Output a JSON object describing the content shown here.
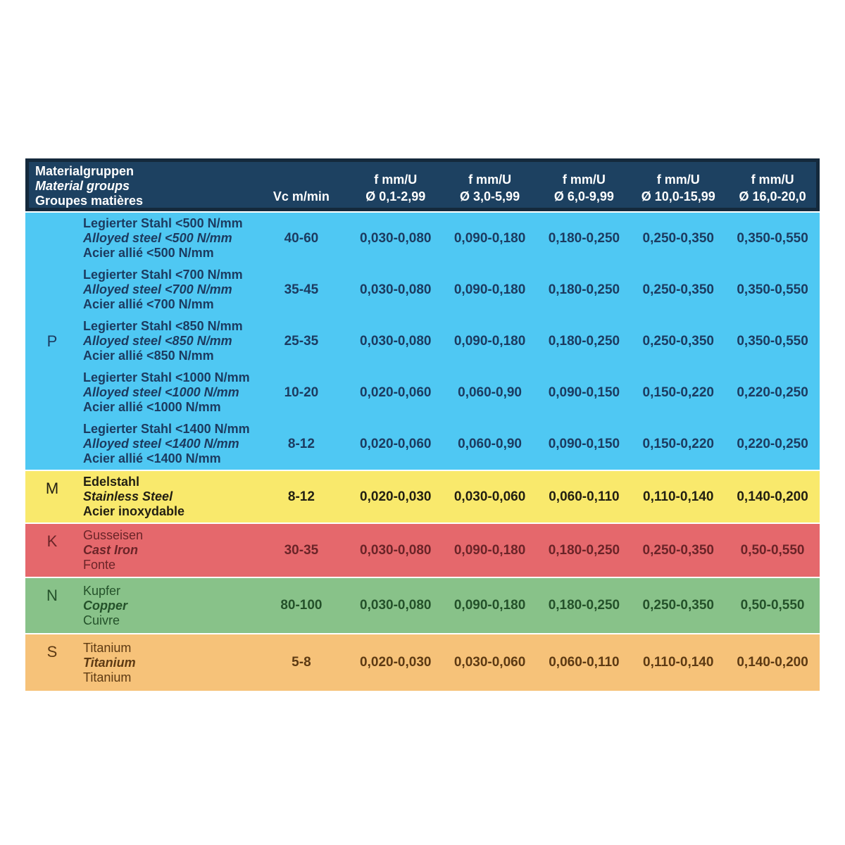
{
  "colors": {
    "header-bg": "#1d4161",
    "header-border": "#14293c",
    "header-text": "#ffffff",
    "p-bg": "#4fc8f3",
    "p-text": "#1c3b60",
    "m-bg": "#f9e96c",
    "m-text": "#221f12",
    "k-bg": "#e5686c",
    "k-text": "#6a2428",
    "n-bg": "#88c289",
    "n-text": "#24512a",
    "s-bg": "#f6c279",
    "s-text": "#5d3a13"
  },
  "table": {
    "header": {
      "title_lines": [
        "Materialgruppen",
        "Material groups",
        "Groupes matières"
      ],
      "col_vc": "Vc m/min",
      "f_label": "f mm/U",
      "diameters": [
        "Ø 0,1-2,99",
        "Ø 3,0-5,99",
        "Ø 6,0-9,99",
        "Ø 10,0-15,99",
        "Ø 16,0-20,0"
      ]
    },
    "sections": [
      {
        "letter": "P",
        "rows": [
          {
            "lines": [
              "Legierter Stahl <500 N/mm",
              "Alloyed steel <500 N/mm",
              "Acier allié <500 N/mm"
            ],
            "vc": "40-60",
            "values": [
              "0,030-0,080",
              "0,090-0,180",
              "0,180-0,250",
              "0,250-0,350",
              "0,350-0,550"
            ]
          },
          {
            "lines": [
              "Legierter Stahl <700 N/mm",
              "Alloyed steel <700 N/mm",
              "Acier allié <700 N/mm"
            ],
            "vc": "35-45",
            "values": [
              "0,030-0,080",
              "0,090-0,180",
              "0,180-0,250",
              "0,250-0,350",
              "0,350-0,550"
            ]
          },
          {
            "lines": [
              "Legierter Stahl <850 N/mm",
              "Alloyed steel <850 N/mm",
              "Acier allié <850 N/mm"
            ],
            "vc": "25-35",
            "values": [
              "0,030-0,080",
              "0,090-0,180",
              "0,180-0,250",
              "0,250-0,350",
              "0,350-0,550"
            ]
          },
          {
            "lines": [
              "Legierter Stahl <1000 N/mm",
              "Alloyed steel <1000 N/mm",
              "Acier allié <1000 N/mm"
            ],
            "vc": "10-20",
            "values": [
              "0,020-0,060",
              "0,060-0,90",
              "0,090-0,150",
              "0,150-0,220",
              "0,220-0,250"
            ]
          },
          {
            "lines": [
              "Legierter Stahl <1400 N/mm",
              "Alloyed steel <1400 N/mm",
              "Acier allié <1400 N/mm"
            ],
            "vc": "8-12",
            "values": [
              "0,020-0,060",
              "0,060-0,90",
              "0,090-0,150",
              "0,150-0,220",
              "0,220-0,250"
            ]
          }
        ]
      },
      {
        "letter": "M",
        "rows": [
          {
            "lines": [
              "Edelstahl",
              "Stainless Steel",
              "Acier inoxydable"
            ],
            "vc": "8-12",
            "values": [
              "0,020-0,030",
              "0,030-0,060",
              "0,060-0,110",
              "0,110-0,140",
              "0,140-0,200"
            ]
          }
        ]
      },
      {
        "letter": "K",
        "rows": [
          {
            "lines": [
              "Gusseisen",
              "Cast Iron",
              "Fonte"
            ],
            "vc": "30-35",
            "values": [
              "0,030-0,080",
              "0,090-0,180",
              "0,180-0,250",
              "0,250-0,350",
              "0,50-0,550"
            ]
          }
        ]
      },
      {
        "letter": "N",
        "rows": [
          {
            "lines": [
              "Kupfer",
              "Copper",
              "Cuivre"
            ],
            "vc": "80-100",
            "values": [
              "0,030-0,080",
              "0,090-0,180",
              "0,180-0,250",
              "0,250-0,350",
              "0,50-0,550"
            ]
          }
        ]
      },
      {
        "letter": "S",
        "rows": [
          {
            "lines": [
              "Titanium",
              "Titanium",
              "Titanium"
            ],
            "vc": "5-8",
            "values": [
              "0,020-0,030",
              "0,030-0,060",
              "0,060-0,110",
              "0,110-0,140",
              "0,140-0,200"
            ]
          }
        ]
      }
    ]
  },
  "chart_data": {
    "type": "table",
    "title": "Materialgruppen / Material groups / Groupes matières",
    "columns": [
      "Group",
      "Material",
      "Vc m/min",
      "f mm/U Ø 0,1-2,99",
      "f mm/U Ø 3,0-5,99",
      "f mm/U Ø 6,0-9,99",
      "f mm/U Ø 10,0-15,99",
      "f mm/U Ø 16,0-20,0"
    ],
    "rows": [
      [
        "P",
        "Legierter Stahl <500 N/mm / Alloyed steel <500 N/mm / Acier allié <500 N/mm",
        "40-60",
        "0,030-0,080",
        "0,090-0,180",
        "0,180-0,250",
        "0,250-0,350",
        "0,350-0,550"
      ],
      [
        "P",
        "Legierter Stahl <700 N/mm / Alloyed steel <700 N/mm / Acier allié <700 N/mm",
        "35-45",
        "0,030-0,080",
        "0,090-0,180",
        "0,180-0,250",
        "0,250-0,350",
        "0,350-0,550"
      ],
      [
        "P",
        "Legierter Stahl <850 N/mm / Alloyed steel <850 N/mm / Acier allié <850 N/mm",
        "25-35",
        "0,030-0,080",
        "0,090-0,180",
        "0,180-0,250",
        "0,250-0,350",
        "0,350-0,550"
      ],
      [
        "P",
        "Legierter Stahl <1000 N/mm / Alloyed steel <1000 N/mm / Acier allié <1000 N/mm",
        "10-20",
        "0,020-0,060",
        "0,060-0,90",
        "0,090-0,150",
        "0,150-0,220",
        "0,220-0,250"
      ],
      [
        "P",
        "Legierter Stahl <1400 N/mm / Alloyed steel <1400 N/mm / Acier allié <1400 N/mm",
        "8-12",
        "0,020-0,060",
        "0,060-0,90",
        "0,090-0,150",
        "0,150-0,220",
        "0,220-0,250"
      ],
      [
        "M",
        "Edelstahl / Stainless Steel / Acier inoxydable",
        "8-12",
        "0,020-0,030",
        "0,030-0,060",
        "0,060-0,110",
        "0,110-0,140",
        "0,140-0,200"
      ],
      [
        "K",
        "Gusseisen / Cast Iron / Fonte",
        "30-35",
        "0,030-0,080",
        "0,090-0,180",
        "0,180-0,250",
        "0,250-0,350",
        "0,50-0,550"
      ],
      [
        "N",
        "Kupfer / Copper / Cuivre",
        "80-100",
        "0,030-0,080",
        "0,090-0,180",
        "0,180-0,250",
        "0,250-0,350",
        "0,50-0,550"
      ],
      [
        "S",
        "Titanium / Titanium / Titanium",
        "5-8",
        "0,020-0,030",
        "0,030-0,060",
        "0,060-0,110",
        "0,110-0,140",
        "0,140-0,200"
      ]
    ]
  }
}
